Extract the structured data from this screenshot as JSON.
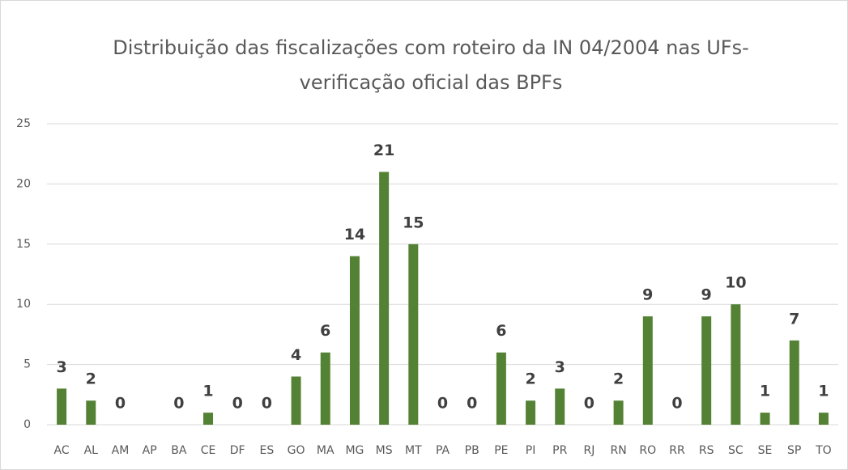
{
  "chart_data": {
    "type": "bar",
    "title": [
      "Distribuição das fiscalizações com roteiro da IN 04/2004 nas UFs-",
      "verificação oficial das BPFs"
    ],
    "categories": [
      "AC",
      "AL",
      "AM",
      "AP",
      "BA",
      "CE",
      "DF",
      "ES",
      "GO",
      "MA",
      "MG",
      "MS",
      "MT",
      "PA",
      "PB",
      "PE",
      "PI",
      "PR",
      "RJ",
      "RN",
      "RO",
      "RR",
      "RS",
      "SC",
      "SE",
      "SP",
      "TO"
    ],
    "values": [
      3,
      2,
      0,
      null,
      0,
      1,
      0,
      0,
      4,
      6,
      14,
      21,
      15,
      0,
      0,
      6,
      2,
      3,
      0,
      2,
      9,
      0,
      9,
      10,
      1,
      7,
      1
    ],
    "color": "#548235",
    "ylim": [
      0,
      25
    ],
    "yticks": [
      0,
      5,
      10,
      15,
      20,
      25
    ],
    "grid": true,
    "data_labels": true
  }
}
